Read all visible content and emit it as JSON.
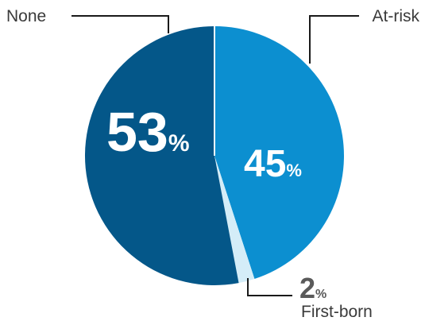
{
  "chart_data": {
    "type": "pie",
    "title": "",
    "slices": [
      {
        "label": "At-risk",
        "value": 45,
        "display": "45",
        "unit": "%",
        "color": "#0c8fd0"
      },
      {
        "label": "First-born",
        "value": 2,
        "display": "2",
        "unit": "%",
        "color": "#d4edf8"
      },
      {
        "label": "None",
        "value": 53,
        "display": "53",
        "unit": "%",
        "color": "#045789"
      }
    ],
    "start_angle": "12 o'clock",
    "direction": "clockwise",
    "legend": "none (direct labels with leader lines)",
    "value_label_colors": {
      "inside": "#ffffff",
      "outside": "#5a5a5a"
    }
  }
}
